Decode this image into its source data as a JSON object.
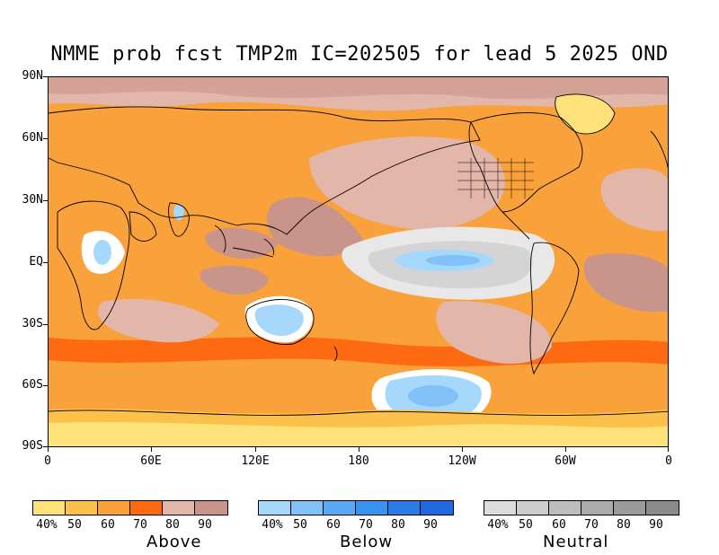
{
  "title": "NMME prob fcst TMP2m IC=202505 for lead 5 2025 OND",
  "map": {
    "lat_labels": [
      "90N",
      "60N",
      "30N",
      "EQ",
      "30S",
      "60S",
      "90S"
    ],
    "lon_labels": [
      "0",
      "60E",
      "120E",
      "180",
      "120W",
      "60W",
      "0"
    ],
    "background_color": "#f9a13a"
  },
  "legends": [
    {
      "name": "Above",
      "tick_labels": [
        "40%",
        "50",
        "60",
        "70",
        "80",
        "90"
      ],
      "colors": [
        "#fde27a",
        "#fbc14a",
        "#f9a13a",
        "#fd6a12",
        "#e3b6aa",
        "#c9948a"
      ]
    },
    {
      "name": "Below",
      "tick_labels": [
        "40%",
        "50",
        "60",
        "70",
        "80",
        "90"
      ],
      "colors": [
        "#a6d8fb",
        "#82c1f7",
        "#5aa9f3",
        "#3a92ef",
        "#2b7ce8",
        "#1f68df"
      ]
    },
    {
      "name": "Neutral",
      "tick_labels": [
        "40%",
        "50",
        "60",
        "70",
        "80",
        "90"
      ],
      "colors": [
        "#dcdcdc",
        "#cdcdcd",
        "#bdbdbd",
        "#ababab",
        "#9b9b9b",
        "#8a8a8a"
      ]
    }
  ]
}
